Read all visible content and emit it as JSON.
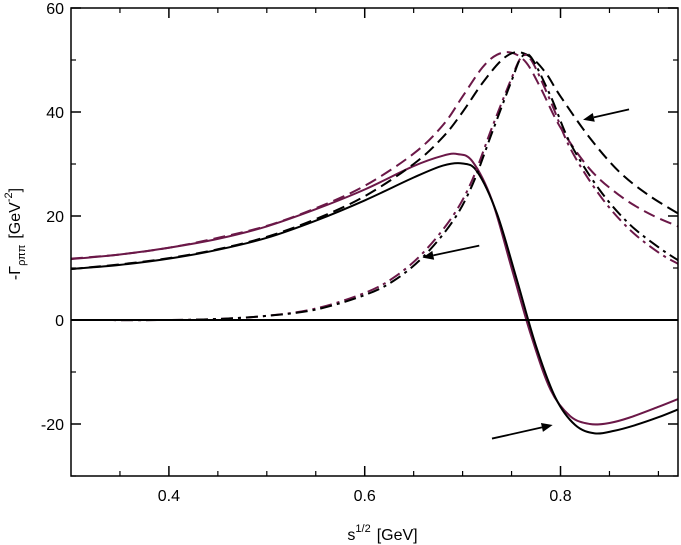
{
  "chart_data": {
    "type": "line",
    "title": "",
    "xlabel": "s^{1/2}  [GeV]",
    "xlabel_parts": {
      "base": "s",
      "sup": "1/2",
      "unit": "[GeV]"
    },
    "ylabel": "-Γ_ρππ  [GeV^-2]",
    "ylabel_parts": {
      "sign": "-",
      "sym": "Γ",
      "sub": "ρππ",
      "unit_pre": "[GeV",
      "unit_sup": "-2",
      "unit_post": "]"
    },
    "xlim": [
      0.3,
      0.92
    ],
    "ylim": [
      -30,
      60
    ],
    "xticks": [
      0.4,
      0.6,
      0.8
    ],
    "xtick_labels": [
      "0.4",
      "0.6",
      "0.8"
    ],
    "yticks": [
      -20,
      0,
      20,
      40,
      60
    ],
    "ytick_labels": [
      "-20",
      "0",
      "20",
      "40",
      "60"
    ],
    "grid": false,
    "zero_line": true,
    "colors": {
      "black": "#000000",
      "purple": "#6b1848"
    },
    "series": [
      {
        "name": "solid-purple",
        "style": "solid",
        "color": "#6b1848",
        "x": [
          0.3,
          0.35,
          0.4,
          0.45,
          0.5,
          0.55,
          0.6,
          0.65,
          0.68,
          0.695,
          0.71,
          0.73,
          0.75,
          0.77,
          0.79,
          0.81,
          0.83,
          0.85,
          0.87,
          0.9,
          0.92
        ],
        "y": [
          11.7,
          12.6,
          13.9,
          15.6,
          18.0,
          21.3,
          25.1,
          29.6,
          31.6,
          31.9,
          30.5,
          23.0,
          10.0,
          -3.0,
          -13.5,
          -18.5,
          -20.0,
          -19.8,
          -18.8,
          -16.7,
          -15.2
        ]
      },
      {
        "name": "solid-black",
        "style": "solid",
        "color": "#000000",
        "x": [
          0.3,
          0.35,
          0.4,
          0.45,
          0.5,
          0.55,
          0.6,
          0.65,
          0.68,
          0.7,
          0.715,
          0.735,
          0.755,
          0.775,
          0.795,
          0.815,
          0.835,
          0.855,
          0.875,
          0.9,
          0.92
        ],
        "y": [
          9.8,
          10.6,
          11.8,
          13.5,
          15.8,
          19.1,
          23.0,
          27.4,
          29.7,
          30.1,
          28.5,
          20.5,
          8.0,
          -5.0,
          -15.0,
          -20.2,
          -21.8,
          -21.3,
          -20.3,
          -18.7,
          -17.2
        ]
      },
      {
        "name": "dashed-purple",
        "style": "dashed",
        "color": "#6b1848",
        "x": [
          0.3,
          0.35,
          0.4,
          0.45,
          0.5,
          0.55,
          0.6,
          0.65,
          0.68,
          0.7,
          0.72,
          0.735,
          0.75,
          0.765,
          0.78,
          0.8,
          0.83,
          0.86,
          0.89,
          0.92
        ],
        "y": [
          11.8,
          12.6,
          13.9,
          15.8,
          18.1,
          21.5,
          25.8,
          32.0,
          37.5,
          43.0,
          48.5,
          51.0,
          51.4,
          49.5,
          44.5,
          37.0,
          29.0,
          24.0,
          20.5,
          18.0
        ]
      },
      {
        "name": "dashed-black",
        "style": "dashed",
        "color": "#000000",
        "x": [
          0.3,
          0.35,
          0.4,
          0.45,
          0.5,
          0.55,
          0.6,
          0.65,
          0.68,
          0.7,
          0.72,
          0.74,
          0.755,
          0.77,
          0.785,
          0.8,
          0.83,
          0.86,
          0.89,
          0.92
        ],
        "y": [
          9.8,
          10.7,
          11.9,
          13.6,
          16.0,
          19.4,
          23.8,
          30.0,
          35.2,
          40.0,
          45.5,
          50.0,
          51.5,
          50.5,
          47.5,
          43.0,
          35.0,
          28.5,
          24.0,
          20.5
        ]
      },
      {
        "name": "dashdot-purple",
        "style": "dashdot",
        "color": "#6b1848",
        "x": [
          0.3,
          0.4,
          0.45,
          0.5,
          0.55,
          0.6,
          0.63,
          0.66,
          0.69,
          0.71,
          0.73,
          0.75,
          0.76,
          0.77,
          0.79,
          0.81,
          0.84,
          0.87,
          0.9,
          0.92
        ],
        "y": [
          0.0,
          0.0,
          0.2,
          0.8,
          2.2,
          5.2,
          8.2,
          13.0,
          20.0,
          27.0,
          37.0,
          46.5,
          50.5,
          50.0,
          42.0,
          33.0,
          24.0,
          17.5,
          13.0,
          10.8
        ]
      },
      {
        "name": "dashdot-black",
        "style": "dashdot",
        "color": "#000000",
        "x": [
          0.3,
          0.4,
          0.45,
          0.5,
          0.55,
          0.6,
          0.63,
          0.66,
          0.69,
          0.71,
          0.73,
          0.75,
          0.76,
          0.77,
          0.79,
          0.81,
          0.84,
          0.87,
          0.9,
          0.92
        ],
        "y": [
          0.0,
          0.0,
          0.2,
          0.8,
          2.0,
          4.8,
          7.6,
          12.2,
          19.0,
          26.0,
          36.0,
          46.0,
          50.5,
          50.5,
          43.0,
          34.0,
          25.0,
          18.5,
          14.0,
          11.5
        ]
      }
    ],
    "annotations": [
      {
        "type": "arrow",
        "points_to": "dashed curves",
        "from": [
          0.87,
          40.5
        ],
        "to": [
          0.823,
          38.5
        ]
      },
      {
        "type": "arrow",
        "points_to": "dash-dot curves",
        "from": [
          0.717,
          14.3
        ],
        "to": [
          0.659,
          12.0
        ]
      },
      {
        "type": "arrow",
        "points_to": "solid curves",
        "from": [
          0.73,
          -22.8
        ],
        "to": [
          0.792,
          -20.2
        ]
      }
    ]
  }
}
